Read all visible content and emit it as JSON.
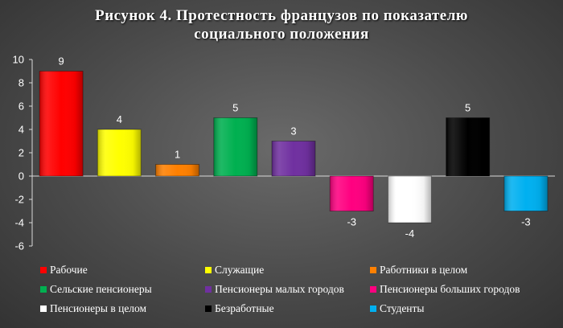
{
  "chart_data": {
    "type": "bar",
    "title_lines": [
      "Рисунок 4. Протестность французов по показателю",
      "социального положения"
    ],
    "categories": [
      "Рабочие",
      "Служащие",
      "Работники в целом",
      "Сельские пенсионеры",
      "Пенсионеры малых городов",
      "Пенсионеры больших городов",
      "Пенсионеры в целом",
      "Безработные",
      "Студенты"
    ],
    "values": [
      9,
      4,
      1,
      5,
      3,
      -3,
      -4,
      5,
      -3
    ],
    "colors": [
      "#ff0000",
      "#ffff00",
      "#ff8000",
      "#00b050",
      "#7030a0",
      "#ff0080",
      "#ffffff",
      "#000000",
      "#00b0f0"
    ],
    "ylim": [
      -6,
      10
    ],
    "yticks": [
      10,
      8,
      6,
      4,
      2,
      0,
      -2,
      -4,
      -6
    ],
    "grid": false,
    "legend_position": "bottom",
    "xlabel": "",
    "ylabel": ""
  }
}
